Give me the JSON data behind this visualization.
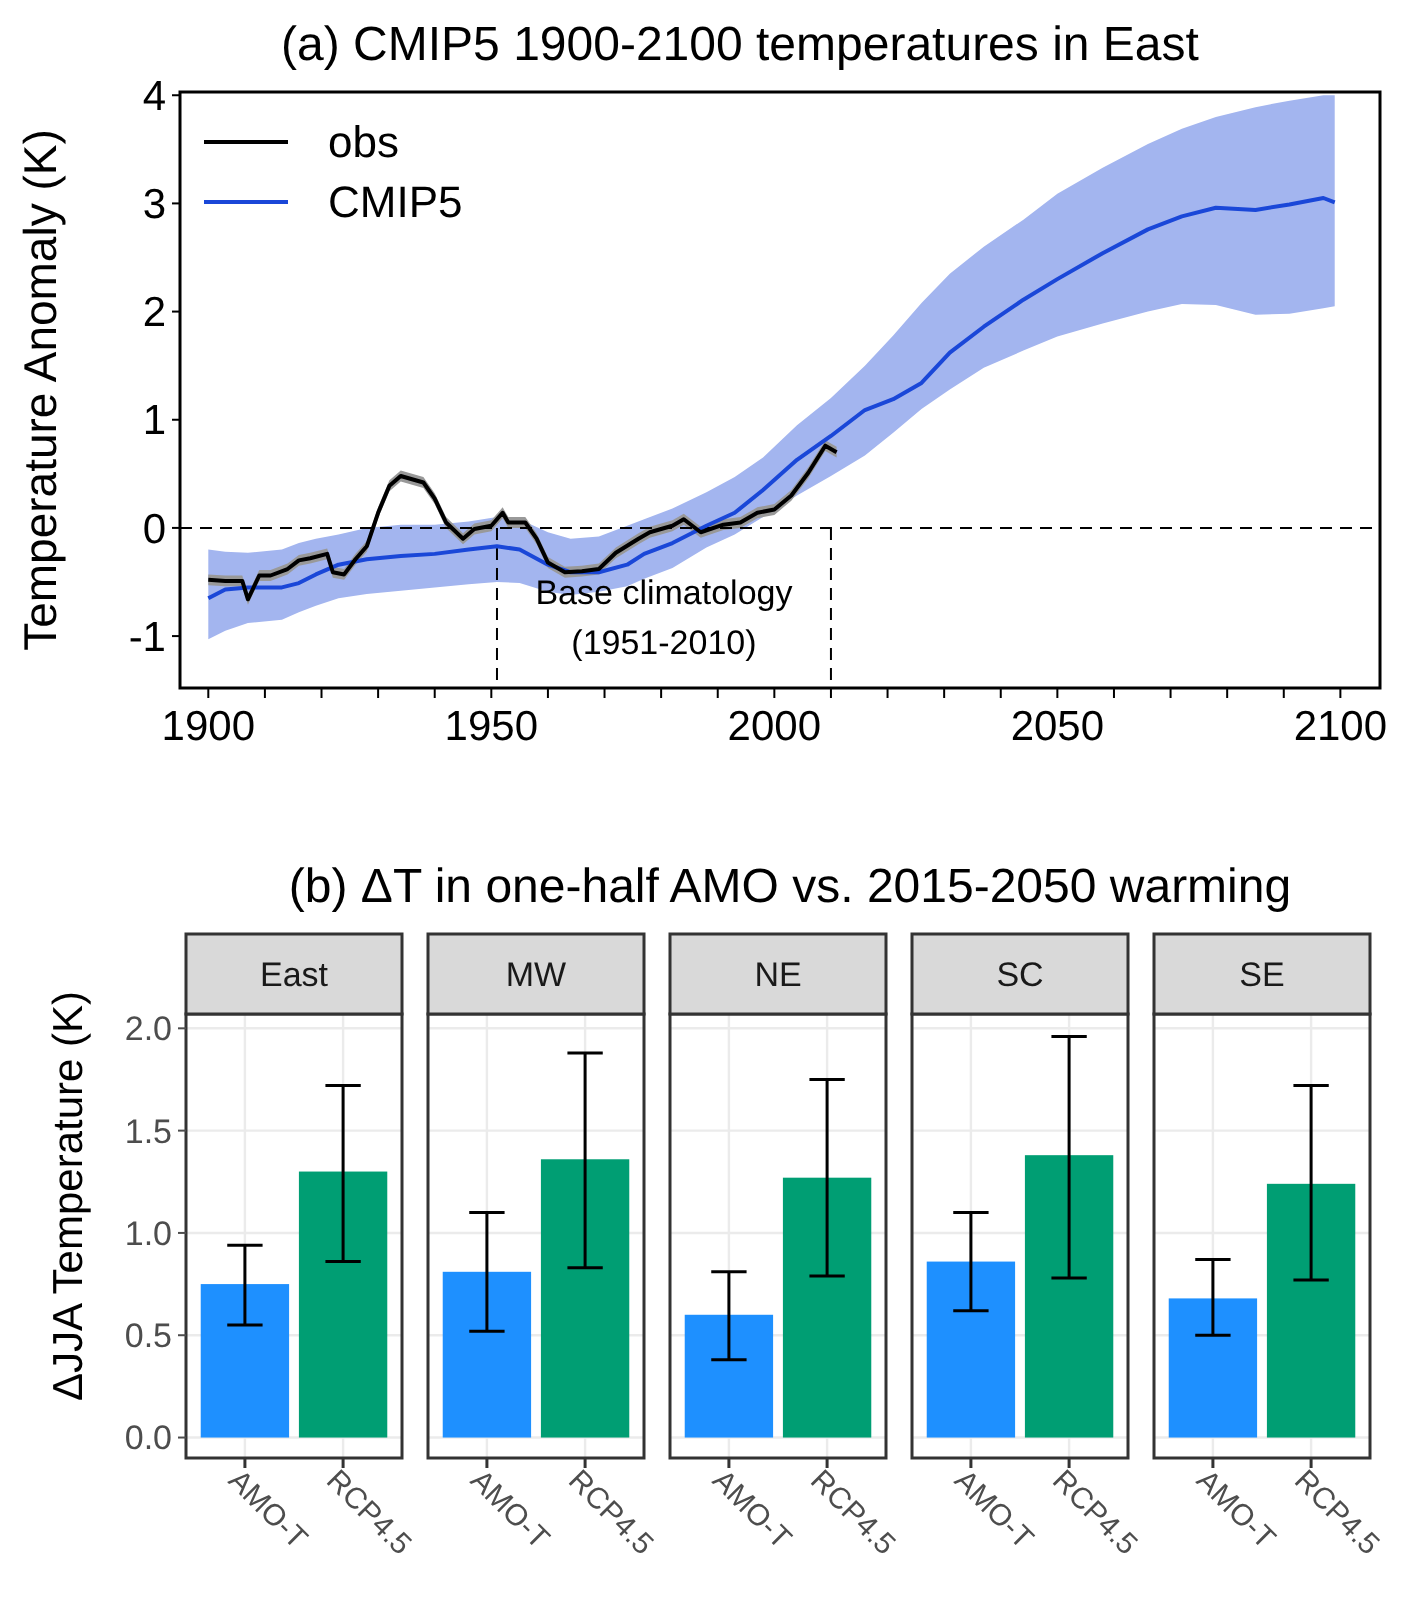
{
  "chart_data": [
    {
      "type": "line",
      "title": "(a) CMIP5 1900-2100 temperatures in East",
      "ylabel": "Temperature Anomaly (K)",
      "xlim": [
        1895,
        2107
      ],
      "ylim": [
        -1.48,
        4.03
      ],
      "xticks": [
        1900,
        {
          "value": 1910,
          "label": null
        },
        {
          "value": 1920,
          "label": null
        },
        {
          "value": 1930,
          "label": null
        },
        {
          "value": 1940,
          "label": null
        },
        1950,
        {
          "value": 1960,
          "label": null
        },
        {
          "value": 1970,
          "label": null
        },
        {
          "value": 1980,
          "label": null
        },
        {
          "value": 1990,
          "label": null
        },
        2000,
        {
          "value": 2010,
          "label": null
        },
        {
          "value": 2020,
          "label": null
        },
        {
          "value": 2030,
          "label": null
        },
        {
          "value": 2040,
          "label": null
        },
        2050,
        {
          "value": 2060,
          "label": null
        },
        {
          "value": 2070,
          "label": null
        },
        {
          "value": 2080,
          "label": null
        },
        {
          "value": 2090,
          "label": null
        },
        2100
      ],
      "yticks": [
        -1,
        0,
        1,
        2,
        3,
        4
      ],
      "legend": "top left",
      "grid": false,
      "series": [
        {
          "name": "CMIP5",
          "color": "#1a47d8",
          "x": [
            1900,
            1903,
            1907,
            1913,
            1916,
            1919,
            1923,
            1928,
            1934,
            1940,
            1946,
            1951,
            1955,
            1960,
            1964,
            1969,
            1974,
            1977,
            1982,
            1988,
            1993,
            1998,
            2004,
            2010,
            2016,
            2021,
            2026,
            2031,
            2037,
            2044,
            2050,
            2058,
            2066,
            2072,
            2078,
            2085,
            2091,
            2097,
            2099
          ],
          "values": [
            -0.65,
            -0.57,
            -0.55,
            -0.55,
            -0.51,
            -0.43,
            -0.34,
            -0.29,
            -0.26,
            -0.24,
            -0.2,
            -0.17,
            -0.2,
            -0.34,
            -0.41,
            -0.41,
            -0.34,
            -0.24,
            -0.14,
            0.02,
            0.14,
            0.35,
            0.63,
            0.85,
            1.09,
            1.19,
            1.34,
            1.62,
            1.86,
            2.11,
            2.3,
            2.54,
            2.76,
            2.88,
            2.96,
            2.94,
            2.99,
            3.05,
            3.01
          ],
          "lower": [
            -1.03,
            -0.95,
            -0.88,
            -0.85,
            -0.78,
            -0.72,
            -0.65,
            -0.61,
            -0.58,
            -0.55,
            -0.52,
            -0.5,
            -0.51,
            -0.59,
            -0.62,
            -0.59,
            -0.54,
            -0.47,
            -0.37,
            -0.18,
            -0.06,
            0.1,
            0.3,
            0.48,
            0.67,
            0.88,
            1.1,
            1.28,
            1.48,
            1.64,
            1.77,
            1.89,
            2.0,
            2.07,
            2.06,
            1.97,
            1.98,
            2.03,
            2.05
          ],
          "upper": [
            -0.2,
            -0.22,
            -0.23,
            -0.2,
            -0.14,
            -0.1,
            -0.06,
            0.0,
            0.03,
            0.03,
            0.06,
            0.1,
            0.08,
            -0.04,
            -0.1,
            -0.08,
            0.02,
            0.08,
            0.18,
            0.33,
            0.47,
            0.65,
            0.95,
            1.2,
            1.5,
            1.78,
            2.08,
            2.35,
            2.6,
            2.85,
            3.09,
            3.33,
            3.55,
            3.69,
            3.8,
            3.89,
            3.95,
            4.0,
            4.0
          ]
        },
        {
          "name": "obs",
          "color": "#000000",
          "x": [
            1900,
            1903,
            1906,
            1907,
            1909,
            1911,
            1914,
            1916,
            1918,
            1921,
            1922,
            1924,
            1926,
            1928,
            1930,
            1932,
            1934,
            1936,
            1938,
            1940,
            1942,
            1945,
            1947,
            1950,
            1952,
            1953,
            1956,
            1958,
            1960,
            1963,
            1966,
            1969,
            1972,
            1976,
            1978,
            1982,
            1984,
            1987,
            1991,
            1994,
            1997,
            2000,
            2003,
            2006,
            2009,
            2011
          ],
          "values": [
            -0.48,
            -0.49,
            -0.49,
            -0.66,
            -0.44,
            -0.44,
            -0.38,
            -0.3,
            -0.28,
            -0.24,
            -0.41,
            -0.43,
            -0.29,
            -0.17,
            0.14,
            0.39,
            0.48,
            0.45,
            0.42,
            0.27,
            0.05,
            -0.1,
            -0.01,
            0.02,
            0.14,
            0.05,
            0.05,
            -0.1,
            -0.32,
            -0.41,
            -0.4,
            -0.38,
            -0.23,
            -0.1,
            -0.04,
            0.02,
            0.08,
            -0.04,
            0.03,
            0.05,
            0.14,
            0.17,
            0.3,
            0.51,
            0.76,
            0.7
          ],
          "lower": [
            -0.53,
            -0.54,
            -0.54,
            -0.71,
            -0.49,
            -0.49,
            -0.43,
            -0.35,
            -0.33,
            -0.29,
            -0.46,
            -0.48,
            -0.34,
            -0.22,
            0.09,
            0.34,
            0.43,
            0.4,
            0.37,
            0.22,
            0.0,
            -0.15,
            -0.06,
            -0.03,
            0.09,
            0.0,
            0.0,
            -0.15,
            -0.37,
            -0.46,
            -0.45,
            -0.43,
            -0.28,
            -0.15,
            -0.09,
            -0.03,
            0.03,
            -0.09,
            -0.02,
            0.0,
            0.09,
            0.12,
            0.25,
            0.46,
            0.71,
            0.65
          ],
          "upper": [
            -0.43,
            -0.44,
            -0.44,
            -0.61,
            -0.39,
            -0.39,
            -0.33,
            -0.25,
            -0.23,
            -0.19,
            -0.36,
            -0.38,
            -0.24,
            -0.12,
            0.19,
            0.44,
            0.53,
            0.5,
            0.47,
            0.32,
            0.1,
            -0.05,
            0.04,
            0.07,
            0.19,
            0.1,
            0.1,
            -0.05,
            -0.27,
            -0.36,
            -0.35,
            -0.33,
            -0.18,
            -0.05,
            0.01,
            0.07,
            0.13,
            0.01,
            0.08,
            0.1,
            0.19,
            0.22,
            0.35,
            0.56,
            0.81,
            0.75
          ]
        }
      ],
      "ref_lines": [
        {
          "axis": "y",
          "value": 0,
          "line_style": "dashed"
        },
        {
          "axis": "x",
          "value": 1951,
          "line_style": "dashed"
        },
        {
          "axis": "x",
          "value": 2010,
          "line_style": "dashed"
        }
      ],
      "annotations": [
        "Base climatology",
        "(1951-2010)"
      ]
    },
    {
      "type": "bar",
      "title": "(b) ΔT in one-half AMO vs. 2015-2050 warming",
      "subtitle": "East",
      "ylabel": "ΔJJA Temperature (K)",
      "categories": [
        "AMO-T",
        "RCP4.5"
      ],
      "values": [
        0.75,
        1.3
      ],
      "colors": [
        "#1e90ff",
        "#009e73"
      ],
      "errors": [
        [
          0.55,
          0.94
        ],
        [
          0.86,
          1.72
        ]
      ],
      "ylim": [
        -0.1,
        2.07
      ],
      "yticks": [
        {
          "value": 0,
          "label": "0.0"
        },
        0.5,
        {
          "value": 1,
          "label": "1.0"
        },
        1.5,
        {
          "value": 2,
          "label": "2.0"
        }
      ],
      "grid": true
    },
    {
      "type": "bar",
      "subtitle": "MW",
      "categories": [
        "AMO-T",
        "RCP4.5"
      ],
      "values": [
        0.81,
        1.36
      ],
      "colors": [
        "#1e90ff",
        "#009e73"
      ],
      "errors": [
        [
          0.52,
          1.1
        ],
        [
          0.83,
          1.88
        ]
      ],
      "ylim": [
        -0.1,
        2.07
      ],
      "yticks": [
        {
          "value": 0,
          "label": null
        },
        {
          "value": 0.5,
          "label": null
        },
        {
          "value": 1,
          "label": null
        },
        {
          "value": 1.5,
          "label": null
        },
        {
          "value": 2,
          "label": null
        }
      ],
      "grid": true,
      "tick_labels": "x"
    },
    {
      "type": "bar",
      "subtitle": "NE",
      "categories": [
        "AMO-T",
        "RCP4.5"
      ],
      "values": [
        0.6,
        1.27
      ],
      "colors": [
        "#1e90ff",
        "#009e73"
      ],
      "errors": [
        [
          0.38,
          0.81
        ],
        [
          0.79,
          1.75
        ]
      ],
      "ylim": [
        -0.1,
        2.07
      ],
      "yticks": [
        {
          "value": 0,
          "label": null
        },
        {
          "value": 0.5,
          "label": null
        },
        {
          "value": 1,
          "label": null
        },
        {
          "value": 1.5,
          "label": null
        },
        {
          "value": 2,
          "label": null
        }
      ],
      "grid": true,
      "tick_labels": "x"
    },
    {
      "type": "bar",
      "subtitle": "SC",
      "categories": [
        "AMO-T",
        "RCP4.5"
      ],
      "values": [
        0.86,
        1.38
      ],
      "colors": [
        "#1e90ff",
        "#009e73"
      ],
      "errors": [
        [
          0.62,
          1.1
        ],
        [
          0.78,
          1.96
        ]
      ],
      "ylim": [
        -0.1,
        2.07
      ],
      "yticks": [
        {
          "value": 0,
          "label": null
        },
        {
          "value": 0.5,
          "label": null
        },
        {
          "value": 1,
          "label": null
        },
        {
          "value": 1.5,
          "label": null
        },
        {
          "value": 2,
          "label": null
        }
      ],
      "grid": true,
      "tick_labels": "x"
    },
    {
      "type": "bar",
      "subtitle": "SE",
      "categories": [
        "AMO-T",
        "RCP4.5"
      ],
      "values": [
        0.68,
        1.24
      ],
      "colors": [
        "#1e90ff",
        "#009e73"
      ],
      "errors": [
        [
          0.5,
          0.87
        ],
        [
          0.77,
          1.72
        ]
      ],
      "ylim": [
        -0.1,
        2.07
      ],
      "yticks": [
        {
          "value": 0,
          "label": null
        },
        {
          "value": 0.5,
          "label": null
        },
        {
          "value": 1,
          "label": null
        },
        {
          "value": 1.5,
          "label": null
        },
        {
          "value": 2,
          "label": null
        }
      ],
      "grid": true,
      "tick_labels": "x"
    }
  ]
}
